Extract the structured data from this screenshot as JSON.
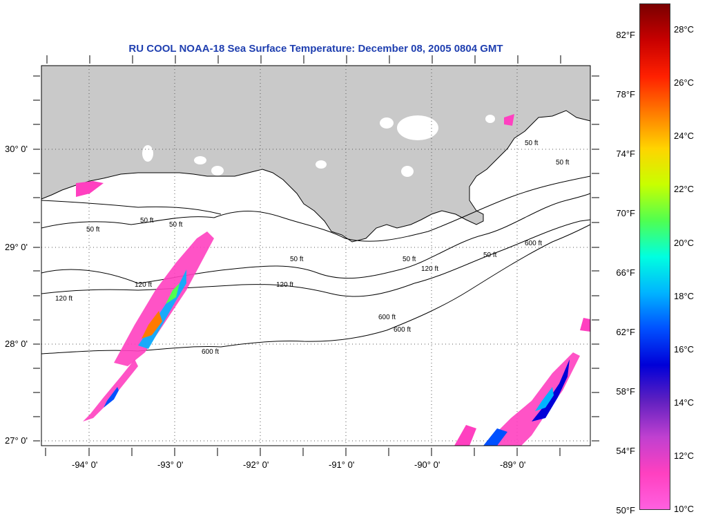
{
  "title": "RU COOL  NOAA-18  Sea Surface Temperature:  December 08, 2005 0804 GMT",
  "map": {
    "land_color": "#c9c9c9",
    "ocean_color": "#ffffff",
    "latitude_labels": [
      "30° 0'",
      "29° 0'",
      "28° 0'",
      "27° 0'"
    ],
    "longitude_labels": [
      "-94° 0'",
      "-93° 0'",
      "-92° 0'",
      "-91° 0'",
      "-90° 0'",
      "-89° 0'"
    ],
    "isobath_labels": [
      "50 ft",
      "50 ft",
      "50 ft",
      "50 ft",
      "50 ft",
      "50 ft",
      "120 ft",
      "120 ft",
      "120 ft",
      "120 ft",
      "600 ft",
      "600 ft",
      "600 ft",
      "600 ft",
      "50 ft",
      "50 ft"
    ]
  },
  "colorbar": {
    "fahrenheit_labels": [
      "82°F",
      "78°F",
      "74°F",
      "70°F",
      "66°F",
      "62°F",
      "58°F",
      "54°F",
      "50°F"
    ],
    "celsius_labels": [
      "28°C",
      "26°C",
      "24°C",
      "22°C",
      "20°C",
      "18°C",
      "16°C",
      "14°C",
      "12°C",
      "10°C"
    ],
    "gradient_colors": [
      "#7a0000",
      "#c80000",
      "#ff2000",
      "#ff7a00",
      "#ffd400",
      "#c8ff00",
      "#50ff50",
      "#00ffe0",
      "#00b4ff",
      "#0050ff",
      "#0000d8",
      "#6020c0",
      "#c040d0",
      "#ff40c0",
      "#ff60e0"
    ]
  }
}
